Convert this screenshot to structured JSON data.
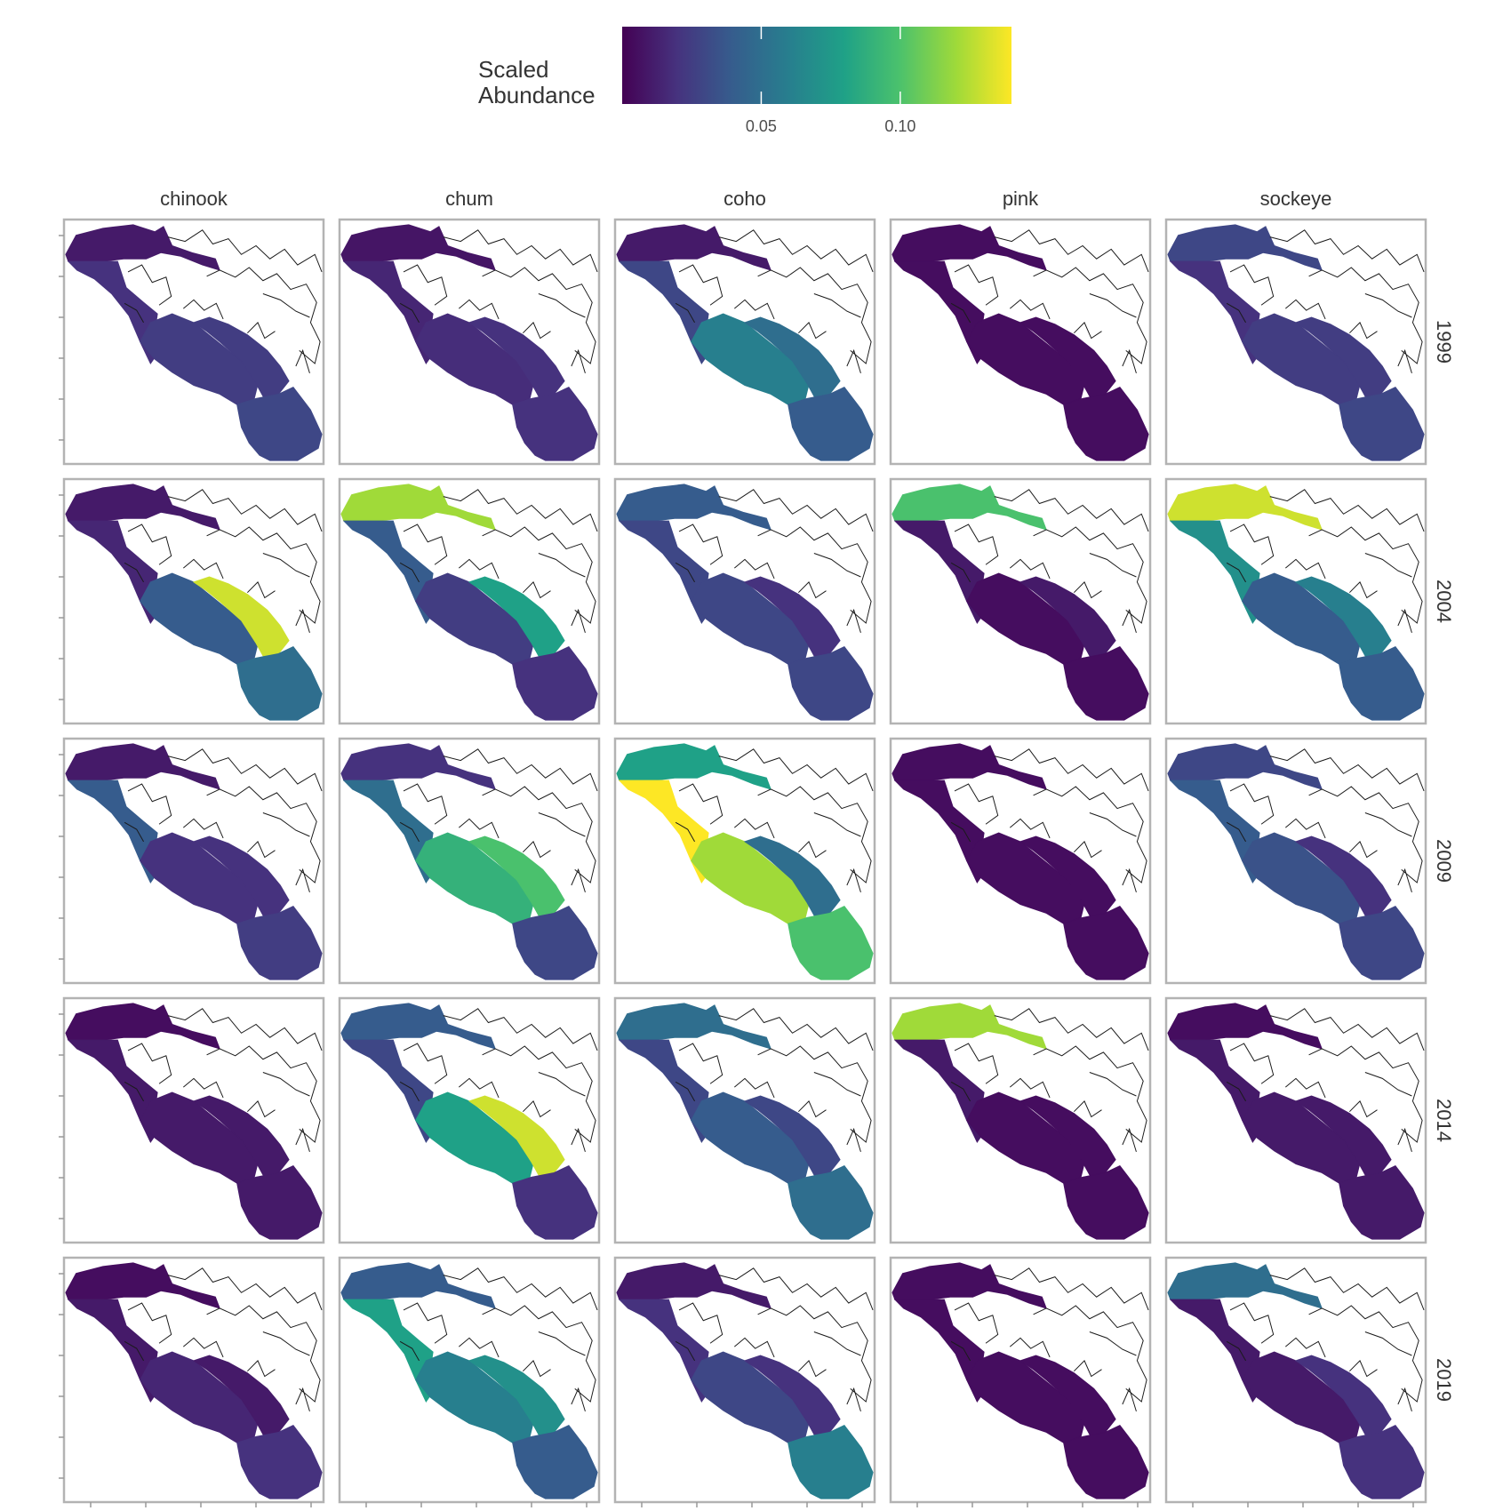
{
  "legend": {
    "title_line1": "Scaled",
    "title_line2": "Abundance",
    "tick_labels": [
      "0.05",
      "0.10"
    ],
    "tick_values": [
      0.05,
      0.1
    ],
    "range": [
      0.0,
      0.14
    ],
    "palette": [
      "#440154",
      "#46327e",
      "#365c8d",
      "#277f8e",
      "#1fa187",
      "#4ac16d",
      "#a0da39",
      "#fde725"
    ]
  },
  "colors": {
    "panel_border": "#b3b3b3",
    "coastline": "#1a1a1a",
    "water": "#ffffff",
    "tick": "#999999"
  },
  "chart_data": {
    "type": "heatmap",
    "title": "",
    "species": [
      "chinook",
      "chum",
      "coho",
      "pink",
      "sockeye"
    ],
    "years": [
      "1999",
      "2004",
      "2009",
      "2014",
      "2019"
    ],
    "region_names": [
      "north",
      "central",
      "south_arm",
      "inlet",
      "south"
    ],
    "values": [
      [
        [
          0.01,
          0.02,
          0.025,
          0.025,
          0.03
        ],
        [
          0.008,
          0.015,
          0.018,
          0.02,
          0.02
        ],
        [
          0.01,
          0.03,
          0.06,
          0.05,
          0.04
        ],
        [
          0.005,
          0.005,
          0.005,
          0.005,
          0.005
        ],
        [
          0.03,
          0.02,
          0.025,
          0.025,
          0.03
        ]
      ],
      [
        [
          0.01,
          0.015,
          0.04,
          0.13,
          0.05
        ],
        [
          0.12,
          0.04,
          0.025,
          0.08,
          0.02
        ],
        [
          0.04,
          0.03,
          0.03,
          0.02,
          0.03
        ],
        [
          0.1,
          0.01,
          0.005,
          0.01,
          0.005
        ],
        [
          0.13,
          0.07,
          0.04,
          0.06,
          0.04
        ]
      ],
      [
        [
          0.01,
          0.04,
          0.02,
          0.02,
          0.025
        ],
        [
          0.02,
          0.05,
          0.09,
          0.1,
          0.03
        ],
        [
          0.08,
          0.14,
          0.12,
          0.05,
          0.1
        ],
        [
          0.005,
          0.005,
          0.005,
          0.005,
          0.005
        ],
        [
          0.03,
          0.04,
          0.035,
          0.02,
          0.03
        ]
      ],
      [
        [
          0.005,
          0.01,
          0.01,
          0.01,
          0.01
        ],
        [
          0.04,
          0.03,
          0.08,
          0.13,
          0.02
        ],
        [
          0.05,
          0.03,
          0.04,
          0.03,
          0.05
        ],
        [
          0.12,
          0.01,
          0.005,
          0.005,
          0.005
        ],
        [
          0.005,
          0.01,
          0.01,
          0.01,
          0.01
        ]
      ],
      [
        [
          0.005,
          0.01,
          0.015,
          0.01,
          0.02
        ],
        [
          0.04,
          0.08,
          0.06,
          0.07,
          0.04
        ],
        [
          0.01,
          0.02,
          0.03,
          0.02,
          0.06
        ],
        [
          0.005,
          0.005,
          0.005,
          0.005,
          0.005
        ],
        [
          0.05,
          0.01,
          0.01,
          0.02,
          0.02
        ]
      ]
    ]
  }
}
